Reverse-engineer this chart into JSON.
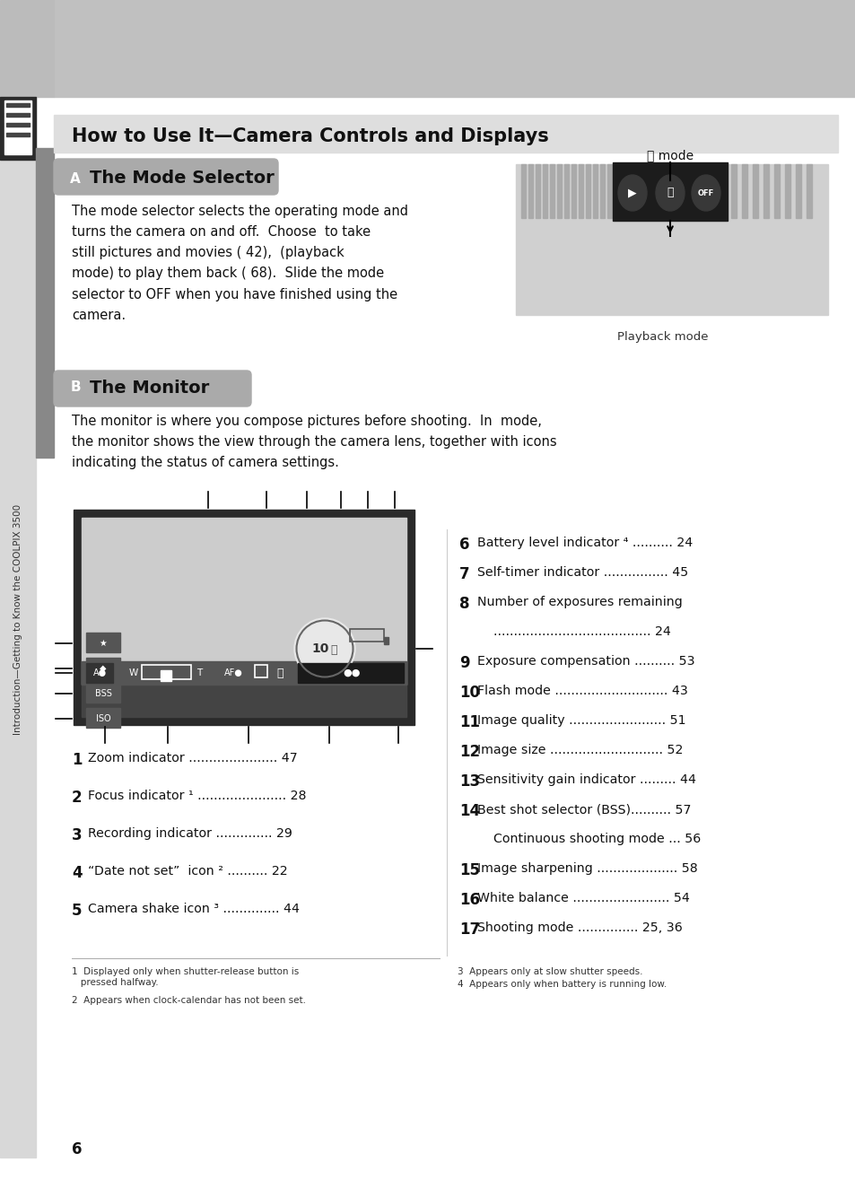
{
  "bg_color": "#ffffff",
  "title": "How to Use It—Camera Controls and Displays",
  "sidebar_text": "Introduction—Getting to Know the COOLPIX 3500",
  "section_a_title": "The Mode Selector",
  "section_b_title": "The Monitor",
  "playback_caption": "Playback mode",
  "body_a": "The mode selector selects the operating mode and\nturns the camera on and off.  Choose  to take\nstill pictures and movies ( 42),  (playback\nmode) to play them back ( 68).  Slide the mode\nselector to OFF when you have finished using the\ncamera.",
  "body_b": "The monitor is where you compose pictures before shooting.  In  mode,\nthe monitor shows the view through the camera lens, together with icons\nindicating the status of camera settings.",
  "left_items": [
    {
      "num": "1",
      "text": "Zoom indicator ......................",
      "page": "47"
    },
    {
      "num": "2",
      "text": "Focus indicator ¹ ......................",
      "page": "28"
    },
    {
      "num": "3",
      "text": "Recording indicator ..............",
      "page": "29"
    },
    {
      "num": "4",
      "text": "“Date not set”  icon ² ..........",
      "page": "22"
    },
    {
      "num": "5",
      "text": "Camera shake icon ³ ..............",
      "page": "44"
    }
  ],
  "right_items": [
    {
      "num": "6",
      "text": "Battery level indicator ⁴ ..........",
      "page": "24",
      "cont": false
    },
    {
      "num": "7",
      "text": "Self-timer indicator ................",
      "page": "45",
      "cont": false
    },
    {
      "num": "8",
      "text": "Number of exposures remaining",
      "page": "",
      "cont": false
    },
    {
      "num": "",
      "text": ".......................................",
      "page": "24",
      "cont": true
    },
    {
      "num": "9",
      "text": "Exposure compensation ..........",
      "page": "53",
      "cont": false
    },
    {
      "num": "10",
      "text": "Flash mode ............................",
      "page": "43",
      "cont": false
    },
    {
      "num": "11",
      "text": "Image quality ........................",
      "page": "51",
      "cont": false
    },
    {
      "num": "12",
      "text": "Image size ............................",
      "page": "52",
      "cont": false
    },
    {
      "num": "13",
      "text": "Sensitivity gain indicator .........",
      "page": "44",
      "cont": false
    },
    {
      "num": "14",
      "text": "Best shot selector (BSS)..........",
      "page": "57",
      "cont": false
    },
    {
      "num": "",
      "text": "Continuous shooting mode ...",
      "page": "56",
      "cont": true
    },
    {
      "num": "15",
      "text": "Image sharpening ....................",
      "page": "58",
      "cont": false
    },
    {
      "num": "16",
      "text": "White balance ........................",
      "page": "54",
      "cont": false
    },
    {
      "num": "17",
      "text": "Shooting mode ...............",
      "page": "25, 36",
      "cont": false
    }
  ],
  "footnote1": "1  Displayed only when shutter-release button is\n   pressed halfway.",
  "footnote2": "2  Appears when clock-calendar has not been set.",
  "footnote3": "3  Appears only at slow shutter speeds.",
  "footnote4": "4  Appears only when battery is running low.",
  "page_number": "6",
  "header_gray": "#c0c0c0",
  "sidebar_gray": "#d8d8d8",
  "title_bar_gray": "#dedede",
  "pill_gray": "#aaaaaa",
  "dark_sidebar_gray": "#888888"
}
